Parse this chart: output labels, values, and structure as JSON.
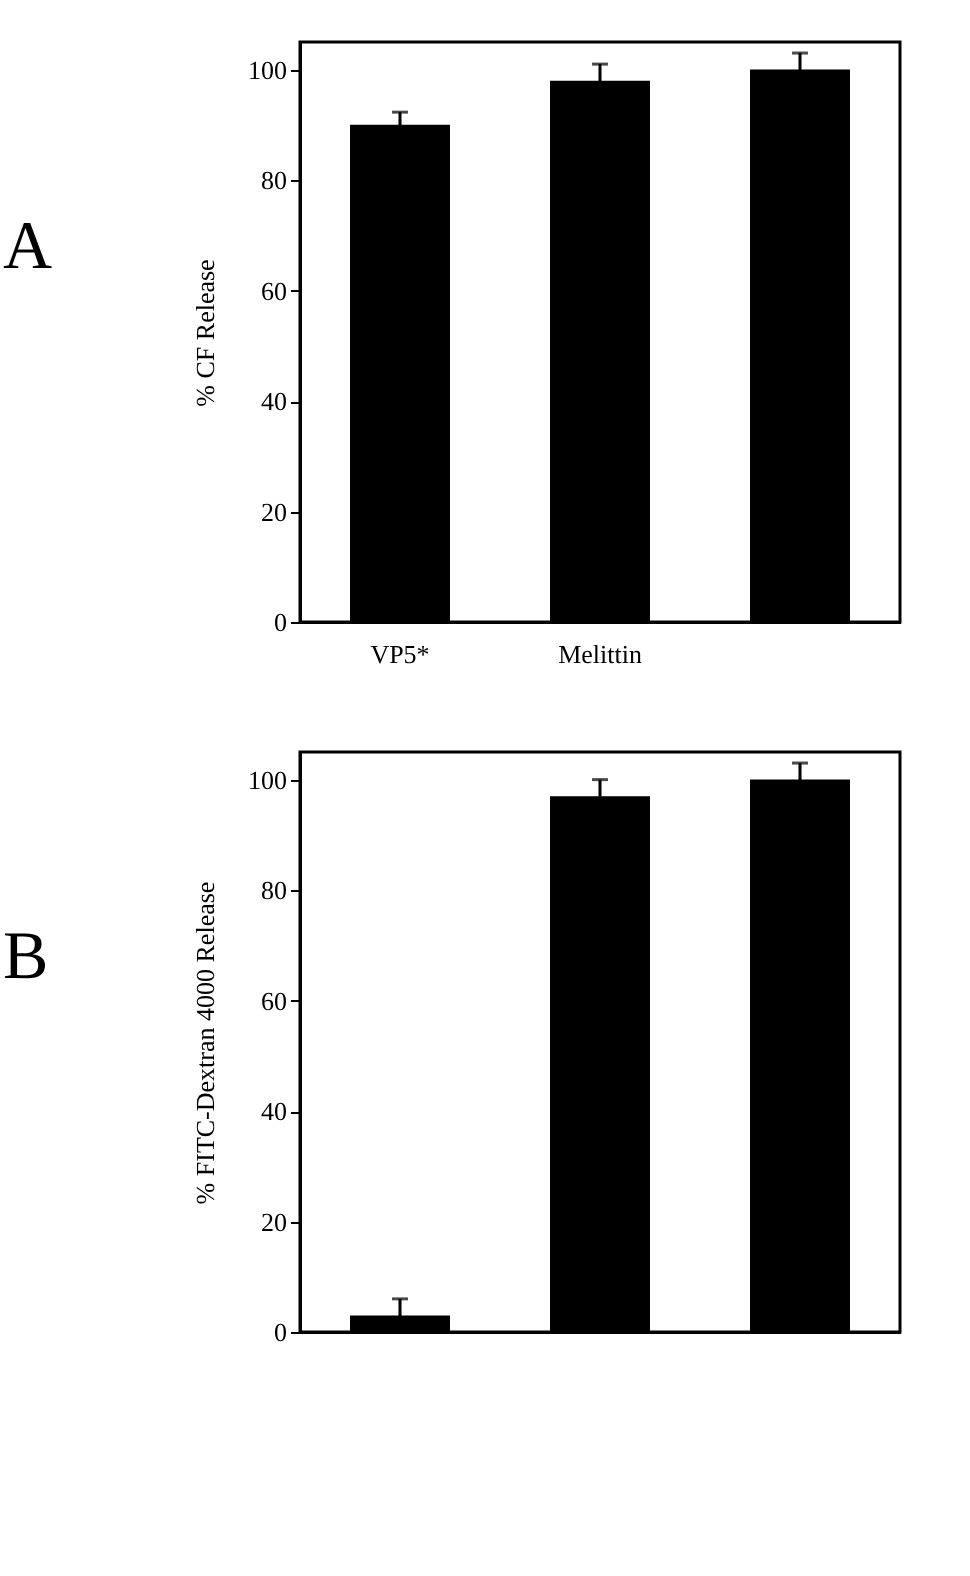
{
  "chart_data": [
    {
      "type": "bar",
      "ylabel": "% CF Release",
      "annotations": [
        "A"
      ],
      "categories": [
        "VP5*",
        "Melittin",
        null
      ],
      "values": [
        90,
        98,
        100
      ],
      "errors": [
        2.3,
        3,
        3
      ],
      "color": "#000000",
      "ylim": [
        0,
        105
      ],
      "yticks": [
        0,
        20,
        40,
        60,
        80,
        100
      ],
      "grid": false
    },
    {
      "type": "bar",
      "ylabel": "% FITC-Dextran 4000 Release",
      "annotations": [
        "B"
      ],
      "categories": [
        null,
        null,
        null
      ],
      "values": [
        3,
        97,
        100
      ],
      "errors": [
        3,
        3,
        3
      ],
      "color": "#000000",
      "ylim": [
        0,
        105
      ],
      "yticks": [
        0,
        20,
        40,
        60,
        80,
        100
      ],
      "grid": false
    }
  ]
}
